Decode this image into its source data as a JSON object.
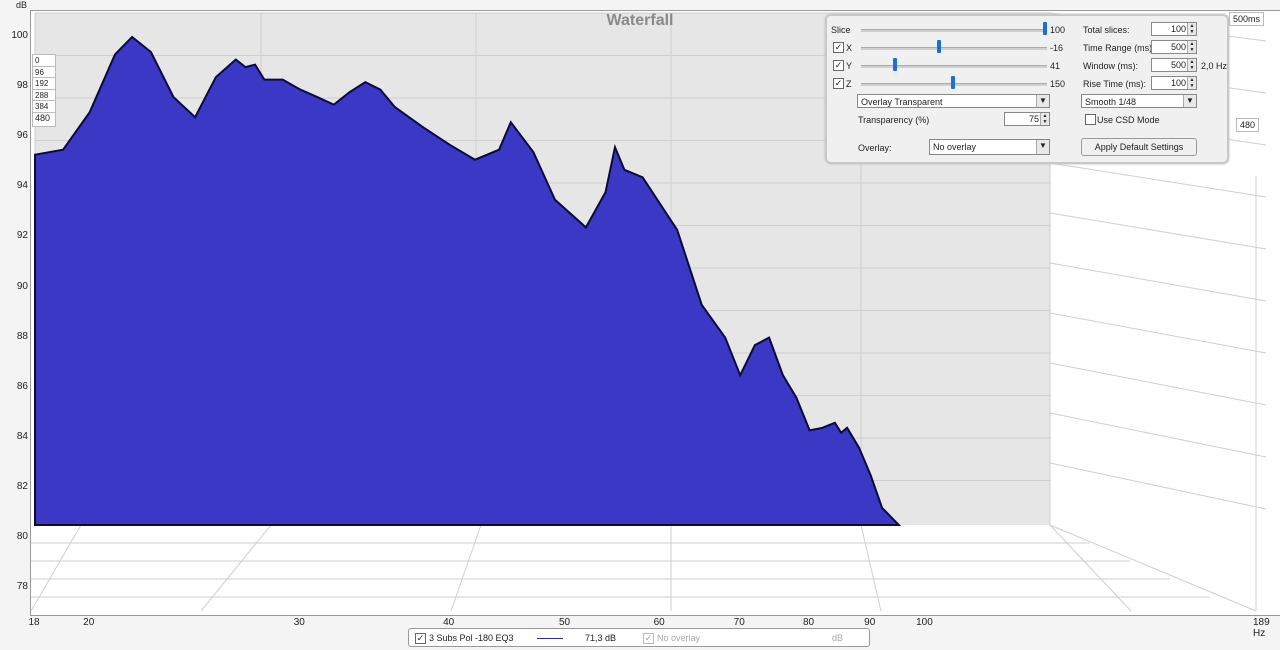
{
  "chart_data": {
    "type": "waterfall",
    "title": "Waterfall",
    "y_unit": "dB",
    "x_unit": "Hz",
    "y_ticks": [
      100,
      98,
      96,
      94,
      92,
      90,
      88,
      86,
      84,
      82,
      80,
      78
    ],
    "x_ticks": [
      "18",
      "20",
      "30",
      "40",
      "50",
      "60",
      "70",
      "80",
      "90",
      "100"
    ],
    "x_end_label": "189 Hz",
    "time_end_label": "500ms",
    "slice_time_labels": [
      "0",
      "96",
      "192",
      "288",
      "384",
      "480"
    ],
    "depth_label_right": "480",
    "depth_label_faded": "384",
    "xlim": [
      18,
      189
    ],
    "ylim": [
      77,
      101
    ],
    "log_x": true,
    "grid": true,
    "fill_color": "#3a38c4",
    "line_color": "#0c0c30",
    "front_slice": {
      "freq": [
        18,
        19,
        20,
        21,
        21.7,
        22.5,
        23.5,
        24.5,
        25.5,
        26.5,
        27,
        27.5,
        28,
        29,
        30,
        31,
        32,
        33,
        34,
        35,
        36,
        38,
        40,
        42,
        44,
        45,
        47,
        49,
        52,
        54,
        55,
        56,
        58,
        62,
        65,
        68,
        70,
        72,
        74,
        76,
        78,
        80,
        82,
        84,
        85,
        86,
        88,
        90,
        92,
        95
      ],
      "db": [
        95.3,
        95.5,
        97,
        99.3,
        100,
        99.4,
        97.6,
        96.8,
        98.4,
        99.1,
        98.8,
        98.9,
        98.3,
        98.3,
        97.9,
        97.6,
        97.3,
        97.8,
        98.2,
        97.9,
        97.2,
        96.4,
        95.7,
        95.1,
        95.5,
        96.6,
        95.4,
        93.5,
        92.4,
        93.8,
        95.6,
        94.7,
        94.4,
        92.3,
        89.3,
        88,
        86.5,
        87.7,
        88,
        86.5,
        85.6,
        84.3,
        84.4,
        84.6,
        84.2,
        84.4,
        83.6,
        82.5,
        81.2,
        80.5
      ]
    }
  },
  "panel": {
    "slice_label": "Slice",
    "slice_value": "100",
    "x_label": "X",
    "x_value": "-16",
    "y_label": "Y",
    "y_value": "41",
    "z_label": "Z",
    "z_value": "150",
    "total_slices_label": "Total slices:",
    "total_slices_value": "100",
    "time_range_label": "Time Range (ms):",
    "time_range_value": "500",
    "window_label": "Window (ms):",
    "window_value": "500",
    "window_hz": "2,0 Hz",
    "rise_time_label": "Rise Time (ms):",
    "rise_time_value": "100",
    "overlay_mode": "Overlay Transparent",
    "smoothing": "Smooth 1/48",
    "transparency_label": "Transparency (%)",
    "transparency_value": "75",
    "use_csd_label": "Use CSD Mode",
    "overlay_label": "Overlay:",
    "overlay_value": "No overlay",
    "apply_button": "Apply Default Settings"
  },
  "legend": {
    "measurement_name": "3 Subs Pol -180 EQ3",
    "measurement_value": "71,3 dB",
    "measurement_color": "#2b2bb0",
    "overlay_name": "No overlay",
    "overlay_unit": "dB"
  }
}
